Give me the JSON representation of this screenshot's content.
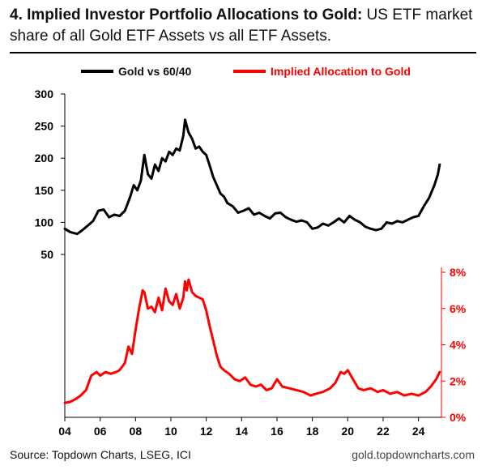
{
  "title": {
    "bold": "4. Implied Investor Portfolio Allocations to Gold:",
    "normal": " US ETF market share of all Gold ETF Assets vs all ETF Assets."
  },
  "footer": {
    "source": "Source: Topdown Charts, LSEG, ICI",
    "website": "gold.topdowncharts.com"
  },
  "colors": {
    "gold_vs_6040": "#000000",
    "allocation": "#ff0000"
  },
  "chart_data": {
    "type": "line",
    "legend_position": "top",
    "x_ticks": [
      "04",
      "06",
      "08",
      "10",
      "12",
      "14",
      "16",
      "18",
      "20",
      "22",
      "24"
    ],
    "x_range": [
      2004,
      2025.3
    ],
    "left_axis": {
      "ticks": [
        "300",
        "250",
        "200",
        "150",
        "100",
        "50"
      ],
      "ylim": [
        50,
        300
      ]
    },
    "right_axis": {
      "ticks": [
        "8%",
        "6%",
        "4%",
        "2%",
        "0%"
      ],
      "ylim": [
        0,
        8
      ]
    },
    "series": [
      {
        "name": "Gold vs 60/40",
        "axis": "left",
        "color": "#000000",
        "points": [
          [
            2004.0,
            90
          ],
          [
            2004.3,
            85
          ],
          [
            2004.7,
            82
          ],
          [
            2005.0,
            88
          ],
          [
            2005.3,
            95
          ],
          [
            2005.6,
            102
          ],
          [
            2005.9,
            118
          ],
          [
            2006.2,
            120
          ],
          [
            2006.5,
            108
          ],
          [
            2006.8,
            112
          ],
          [
            2007.1,
            110
          ],
          [
            2007.4,
            118
          ],
          [
            2007.7,
            140
          ],
          [
            2007.9,
            158
          ],
          [
            2008.1,
            150
          ],
          [
            2008.3,
            165
          ],
          [
            2008.5,
            205
          ],
          [
            2008.7,
            175
          ],
          [
            2008.9,
            168
          ],
          [
            2009.1,
            190
          ],
          [
            2009.3,
            180
          ],
          [
            2009.5,
            200
          ],
          [
            2009.7,
            195
          ],
          [
            2009.9,
            210
          ],
          [
            2010.1,
            205
          ],
          [
            2010.3,
            215
          ],
          [
            2010.5,
            212
          ],
          [
            2010.7,
            235
          ],
          [
            2010.8,
            260
          ],
          [
            2010.9,
            250
          ],
          [
            2011.0,
            240
          ],
          [
            2011.2,
            230
          ],
          [
            2011.4,
            215
          ],
          [
            2011.6,
            218
          ],
          [
            2011.8,
            210
          ],
          [
            2012.0,
            205
          ],
          [
            2012.2,
            188
          ],
          [
            2012.4,
            170
          ],
          [
            2012.6,
            158
          ],
          [
            2012.8,
            145
          ],
          [
            2013.0,
            140
          ],
          [
            2013.2,
            130
          ],
          [
            2013.5,
            125
          ],
          [
            2013.8,
            115
          ],
          [
            2014.1,
            118
          ],
          [
            2014.4,
            122
          ],
          [
            2014.7,
            112
          ],
          [
            2015.0,
            115
          ],
          [
            2015.3,
            110
          ],
          [
            2015.6,
            106
          ],
          [
            2015.9,
            114
          ],
          [
            2016.2,
            115
          ],
          [
            2016.5,
            108
          ],
          [
            2016.8,
            104
          ],
          [
            2017.1,
            101
          ],
          [
            2017.4,
            103
          ],
          [
            2017.7,
            100
          ],
          [
            2018.0,
            90
          ],
          [
            2018.3,
            92
          ],
          [
            2018.6,
            98
          ],
          [
            2018.9,
            95
          ],
          [
            2019.2,
            100
          ],
          [
            2019.5,
            106
          ],
          [
            2019.8,
            100
          ],
          [
            2020.1,
            110
          ],
          [
            2020.4,
            104
          ],
          [
            2020.7,
            100
          ],
          [
            2021.0,
            93
          ],
          [
            2021.3,
            90
          ],
          [
            2021.6,
            88
          ],
          [
            2021.9,
            90
          ],
          [
            2022.2,
            100
          ],
          [
            2022.5,
            98
          ],
          [
            2022.8,
            102
          ],
          [
            2023.1,
            100
          ],
          [
            2023.4,
            104
          ],
          [
            2023.7,
            108
          ],
          [
            2024.0,
            110
          ],
          [
            2024.3,
            125
          ],
          [
            2024.6,
            138
          ],
          [
            2024.9,
            158
          ],
          [
            2025.1,
            175
          ],
          [
            2025.2,
            190
          ]
        ]
      },
      {
        "name": "Implied Allocation to Gold",
        "axis": "right",
        "color": "#ff0000",
        "points": [
          [
            2004.0,
            0.8
          ],
          [
            2004.3,
            0.85
          ],
          [
            2004.6,
            1.0
          ],
          [
            2004.9,
            1.2
          ],
          [
            2005.2,
            1.5
          ],
          [
            2005.5,
            2.3
          ],
          [
            2005.8,
            2.5
          ],
          [
            2006.0,
            2.3
          ],
          [
            2006.3,
            2.5
          ],
          [
            2006.6,
            2.4
          ],
          [
            2006.9,
            2.5
          ],
          [
            2007.1,
            2.6
          ],
          [
            2007.4,
            3.0
          ],
          [
            2007.6,
            3.9
          ],
          [
            2007.8,
            3.5
          ],
          [
            2008.0,
            4.8
          ],
          [
            2008.2,
            6.0
          ],
          [
            2008.4,
            7.0
          ],
          [
            2008.5,
            6.9
          ],
          [
            2008.7,
            6.0
          ],
          [
            2008.9,
            6.1
          ],
          [
            2009.1,
            5.8
          ],
          [
            2009.3,
            6.6
          ],
          [
            2009.5,
            5.9
          ],
          [
            2009.7,
            7.1
          ],
          [
            2009.9,
            6.4
          ],
          [
            2010.1,
            6.2
          ],
          [
            2010.3,
            6.8
          ],
          [
            2010.5,
            6.0
          ],
          [
            2010.7,
            6.6
          ],
          [
            2010.8,
            7.5
          ],
          [
            2010.9,
            7.0
          ],
          [
            2011.0,
            7.6
          ],
          [
            2011.2,
            6.9
          ],
          [
            2011.4,
            6.7
          ],
          [
            2011.6,
            6.6
          ],
          [
            2011.8,
            6.5
          ],
          [
            2012.0,
            5.9
          ],
          [
            2012.2,
            5.0
          ],
          [
            2012.4,
            4.2
          ],
          [
            2012.6,
            3.4
          ],
          [
            2012.8,
            2.8
          ],
          [
            2013.0,
            2.6
          ],
          [
            2013.3,
            2.4
          ],
          [
            2013.6,
            2.1
          ],
          [
            2013.9,
            2.0
          ],
          [
            2014.2,
            2.2
          ],
          [
            2014.5,
            1.8
          ],
          [
            2014.8,
            1.7
          ],
          [
            2015.1,
            1.8
          ],
          [
            2015.4,
            1.5
          ],
          [
            2015.7,
            1.6
          ],
          [
            2016.0,
            2.1
          ],
          [
            2016.3,
            1.7
          ],
          [
            2016.7,
            1.6
          ],
          [
            2017.1,
            1.5
          ],
          [
            2017.5,
            1.4
          ],
          [
            2017.9,
            1.2
          ],
          [
            2018.2,
            1.3
          ],
          [
            2018.6,
            1.4
          ],
          [
            2019.0,
            1.6
          ],
          [
            2019.3,
            1.9
          ],
          [
            2019.6,
            2.5
          ],
          [
            2019.8,
            2.4
          ],
          [
            2020.0,
            2.6
          ],
          [
            2020.3,
            2.1
          ],
          [
            2020.6,
            1.6
          ],
          [
            2020.9,
            1.5
          ],
          [
            2021.3,
            1.6
          ],
          [
            2021.7,
            1.4
          ],
          [
            2022.0,
            1.5
          ],
          [
            2022.4,
            1.3
          ],
          [
            2022.8,
            1.4
          ],
          [
            2023.2,
            1.2
          ],
          [
            2023.6,
            1.3
          ],
          [
            2024.0,
            1.2
          ],
          [
            2024.4,
            1.4
          ],
          [
            2024.7,
            1.7
          ],
          [
            2025.0,
            2.1
          ],
          [
            2025.2,
            2.5
          ]
        ]
      }
    ]
  }
}
